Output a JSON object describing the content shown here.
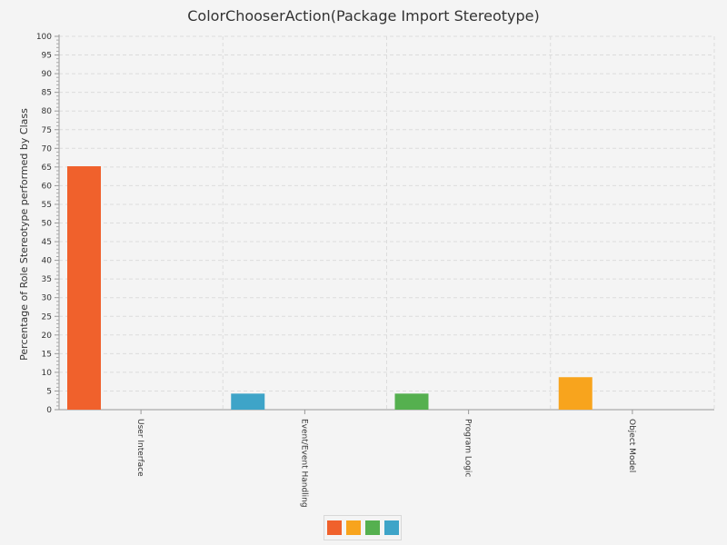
{
  "chart_data": {
    "type": "bar",
    "title": "ColorChooserAction(Package Import Stereotype)",
    "ylabel": "Percentage of Role Stereotype performed by Class",
    "xlabel": "",
    "ylim": [
      0,
      100
    ],
    "y_major_step": 5,
    "y_minor_step": 1,
    "grid": true,
    "legend_placement": "bottom-center",
    "categories": [
      "User Interface",
      "Event/Event Handling",
      "Program Logic",
      "Object Model"
    ],
    "series": [
      {
        "color": "#f0612c",
        "values": [
          65.2,
          0,
          0,
          0
        ]
      },
      {
        "color": "#f8a41d",
        "values": [
          0,
          0,
          0,
          8.7
        ]
      },
      {
        "color": "#55b04f",
        "values": [
          0,
          0,
          4.3,
          0
        ]
      },
      {
        "color": "#3ea4c8",
        "values": [
          0,
          4.3,
          0,
          0
        ]
      }
    ],
    "bar_series_per_category": [
      0,
      3,
      2,
      1
    ]
  }
}
